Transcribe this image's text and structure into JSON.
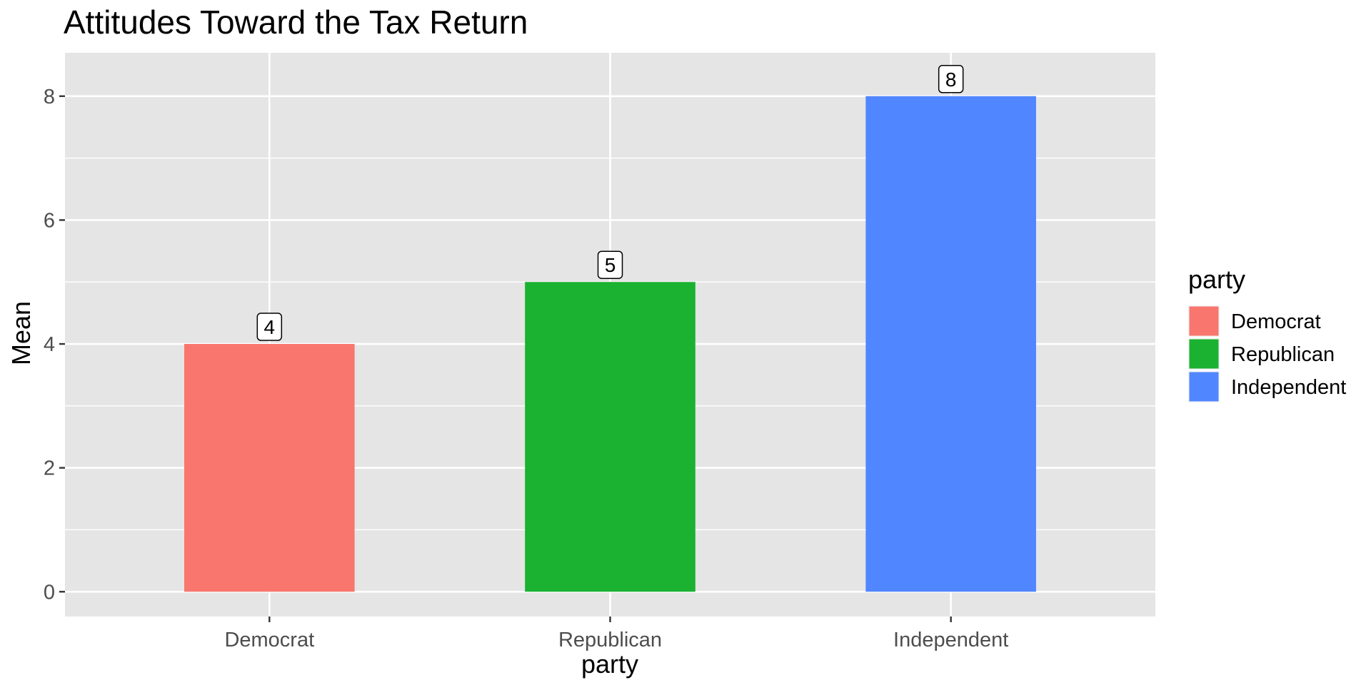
{
  "chart_data": {
    "type": "bar",
    "title": "Attitudes Toward the Tax Return",
    "xlabel": "party",
    "ylabel": "Mean",
    "categories": [
      "Democrat",
      "Republican",
      "Independent"
    ],
    "values": [
      4,
      5,
      8
    ],
    "data_labels": [
      "4",
      "5",
      "8"
    ],
    "ylim": [
      -0.4,
      8.7
    ],
    "yticks": [
      0,
      2,
      4,
      6,
      8
    ],
    "ytick_labels": [
      "0",
      "2",
      "4",
      "6",
      "8"
    ],
    "grid": true,
    "colors": [
      "#F8766D",
      "#1BB131",
      "#5086FF"
    ],
    "panel_background": "#E5E5E5",
    "legend": {
      "title": "party",
      "placement": "right",
      "entries": [
        "Democrat",
        "Republican",
        "Independent"
      ]
    }
  }
}
